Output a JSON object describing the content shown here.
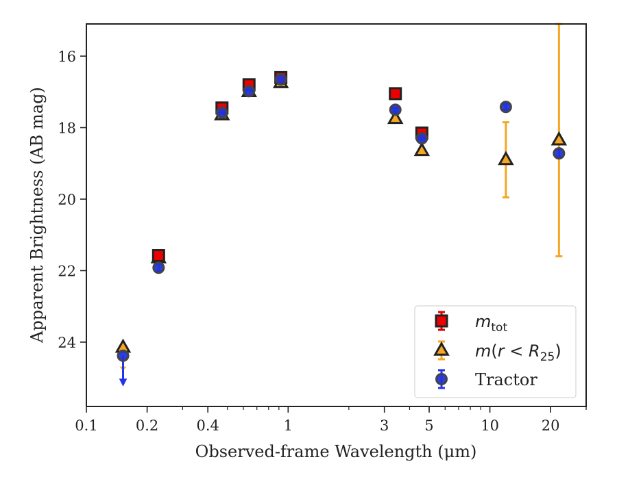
{
  "chart_data": {
    "type": "scatter",
    "title": "",
    "xlabel": "Observed-frame Wavelength (μm)",
    "ylabel": "Apparent Brightness (AB mag)",
    "xscale": "log",
    "xlim": [
      0.1,
      30
    ],
    "ylim": [
      25.8,
      15.1
    ],
    "y_inverted": true,
    "grid": false,
    "legend_position": "lower right",
    "xticks": [
      {
        "value": 0.1,
        "label": "0.1"
      },
      {
        "value": 0.2,
        "label": "0.2"
      },
      {
        "value": 0.4,
        "label": "0.4"
      },
      {
        "value": 1,
        "label": "1"
      },
      {
        "value": 3,
        "label": "3"
      },
      {
        "value": 5,
        "label": "5"
      },
      {
        "value": 10,
        "label": "10"
      },
      {
        "value": 20,
        "label": "20"
      }
    ],
    "yticks": [
      {
        "value": 16,
        "label": "16"
      },
      {
        "value": 18,
        "label": "18"
      },
      {
        "value": 20,
        "label": "20"
      },
      {
        "value": 22,
        "label": "22"
      },
      {
        "value": 24,
        "label": "24"
      }
    ],
    "series": [
      {
        "name": "m_tot",
        "marker": "square",
        "color": "#ee0000",
        "errcolor": "#dd0000",
        "points": [
          {
            "x": 0.228,
            "y": 21.58,
            "err": 0.1
          },
          {
            "x": 0.47,
            "y": 17.45,
            "err": 0.06
          },
          {
            "x": 0.64,
            "y": 16.8,
            "err": 0.06
          },
          {
            "x": 0.92,
            "y": 16.6,
            "err": 0.05
          },
          {
            "x": 3.4,
            "y": 17.05,
            "err": 0.03
          },
          {
            "x": 4.6,
            "y": 18.15,
            "err": 0.04
          }
        ]
      },
      {
        "name": "m(r < R25)",
        "marker": "triangle",
        "color": "#f5a623",
        "errcolor": "#f5a623",
        "points": [
          {
            "x": 0.152,
            "y": 24.15,
            "err": 0,
            "upper_limit": true
          },
          {
            "x": 0.228,
            "y": 21.65,
            "err": 0.1
          },
          {
            "x": 0.47,
            "y": 17.65,
            "err": 0.05
          },
          {
            "x": 0.64,
            "y": 17.0,
            "err": 0.05
          },
          {
            "x": 0.92,
            "y": 16.75,
            "err": 0.05
          },
          {
            "x": 3.4,
            "y": 17.75,
            "err": 0.05
          },
          {
            "x": 4.6,
            "y": 18.65,
            "err": 0.06
          },
          {
            "x": 12.0,
            "y": 18.9,
            "err": 1.05
          },
          {
            "x": 22.0,
            "y": 18.35,
            "err": 3.25
          }
        ]
      },
      {
        "name": "Tractor",
        "marker": "circle",
        "color": "#2233dd",
        "errcolor": "#2233ee",
        "points": [
          {
            "x": 0.152,
            "y": 24.38,
            "err": 0,
            "upper_limit": true
          },
          {
            "x": 0.228,
            "y": 21.92,
            "err": 0.1
          },
          {
            "x": 0.47,
            "y": 17.58,
            "err": 0.05
          },
          {
            "x": 0.64,
            "y": 16.98,
            "err": 0.05
          },
          {
            "x": 0.92,
            "y": 16.65,
            "err": 0.05
          },
          {
            "x": 3.4,
            "y": 17.5,
            "err": 0.05
          },
          {
            "x": 4.6,
            "y": 18.3,
            "err": 0.05
          },
          {
            "x": 12.0,
            "y": 17.42,
            "err": 0.08
          },
          {
            "x": 22.0,
            "y": 18.72,
            "err": 0.1
          }
        ]
      }
    ]
  },
  "legend": {
    "mtot_main": "m",
    "mtot_sub": "tot",
    "mr_m": "m",
    "mr_open": "(",
    "mr_r": "r",
    "mr_lt": " < ",
    "mr_R": "R",
    "mr_sub": "25",
    "mr_close": ")",
    "tractor": "Tractor"
  }
}
